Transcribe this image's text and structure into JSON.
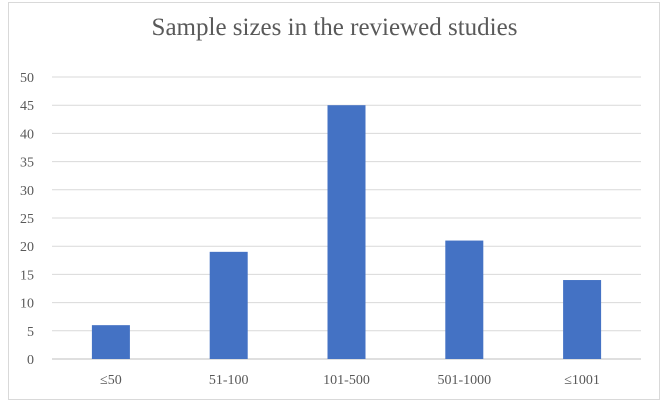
{
  "chart_data": {
    "type": "bar",
    "title": "Sample sizes in the reviewed studies",
    "categories": [
      "≤50",
      "51-100",
      "101-500",
      "501-1000",
      "≤1001"
    ],
    "values": [
      6,
      19,
      45,
      21,
      14
    ],
    "ylim": [
      0,
      50
    ],
    "yticks": [
      0,
      5,
      10,
      15,
      20,
      25,
      30,
      35,
      40,
      45,
      50
    ],
    "grid": true,
    "bar_color": "#4472c4",
    "gridline_color": "#d9d9d9",
    "text_color": "#595959"
  }
}
